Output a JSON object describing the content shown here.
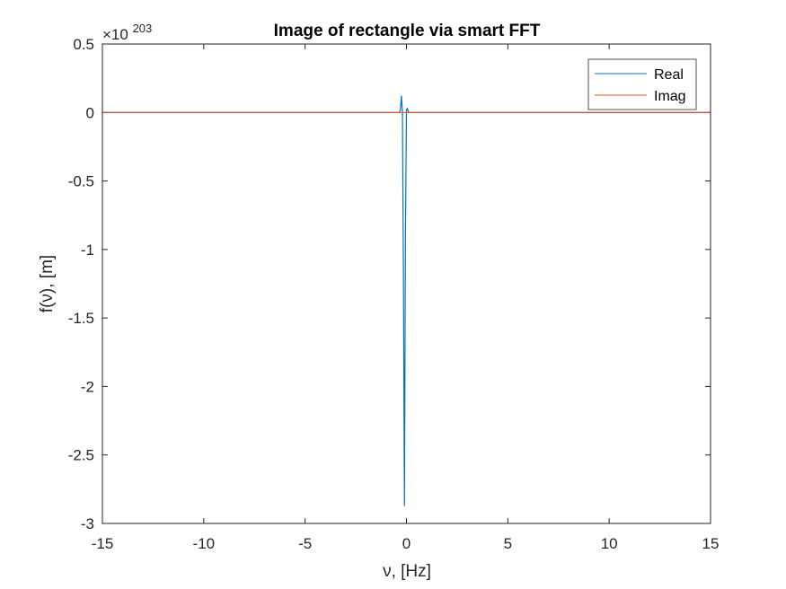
{
  "chart_data": {
    "type": "line",
    "title": "Image of rectangle via smart FFT",
    "xlabel": "ν, [Hz]",
    "ylabel": "f(ν), [m]",
    "y_exponent_base": "×10",
    "y_exponent_power": "203",
    "xlim": [
      -15,
      15
    ],
    "ylim": [
      -3,
      0.5
    ],
    "xticks": [
      -15,
      -10,
      -5,
      0,
      5,
      10,
      15
    ],
    "yticks": [
      -3,
      -2.5,
      -2,
      -1.5,
      -1,
      -0.5,
      0,
      0.5
    ],
    "xtick_labels": [
      "-15",
      "-10",
      "-5",
      "0",
      "5",
      "10",
      "15"
    ],
    "ytick_labels": [
      "-3",
      "-2.5",
      "-2",
      "-1.5",
      "-1",
      "-0.5",
      "0",
      "0.5"
    ],
    "legend_location": "top-right",
    "series": [
      {
        "name": "Real",
        "color": "#0072BD",
        "x": [
          -15,
          -0.35,
          -0.3,
          -0.25,
          -0.2,
          -0.15,
          -0.1,
          -0.05,
          0.0,
          0.05,
          0.1,
          15
        ],
        "y": [
          0,
          0,
          0.02,
          0.12,
          0.0,
          -1.2,
          -2.87,
          -0.9,
          0.02,
          0.03,
          0,
          0
        ]
      },
      {
        "name": "Imag",
        "color": "#D95319",
        "x": [
          -15,
          15
        ],
        "y": [
          0,
          0
        ]
      }
    ]
  }
}
